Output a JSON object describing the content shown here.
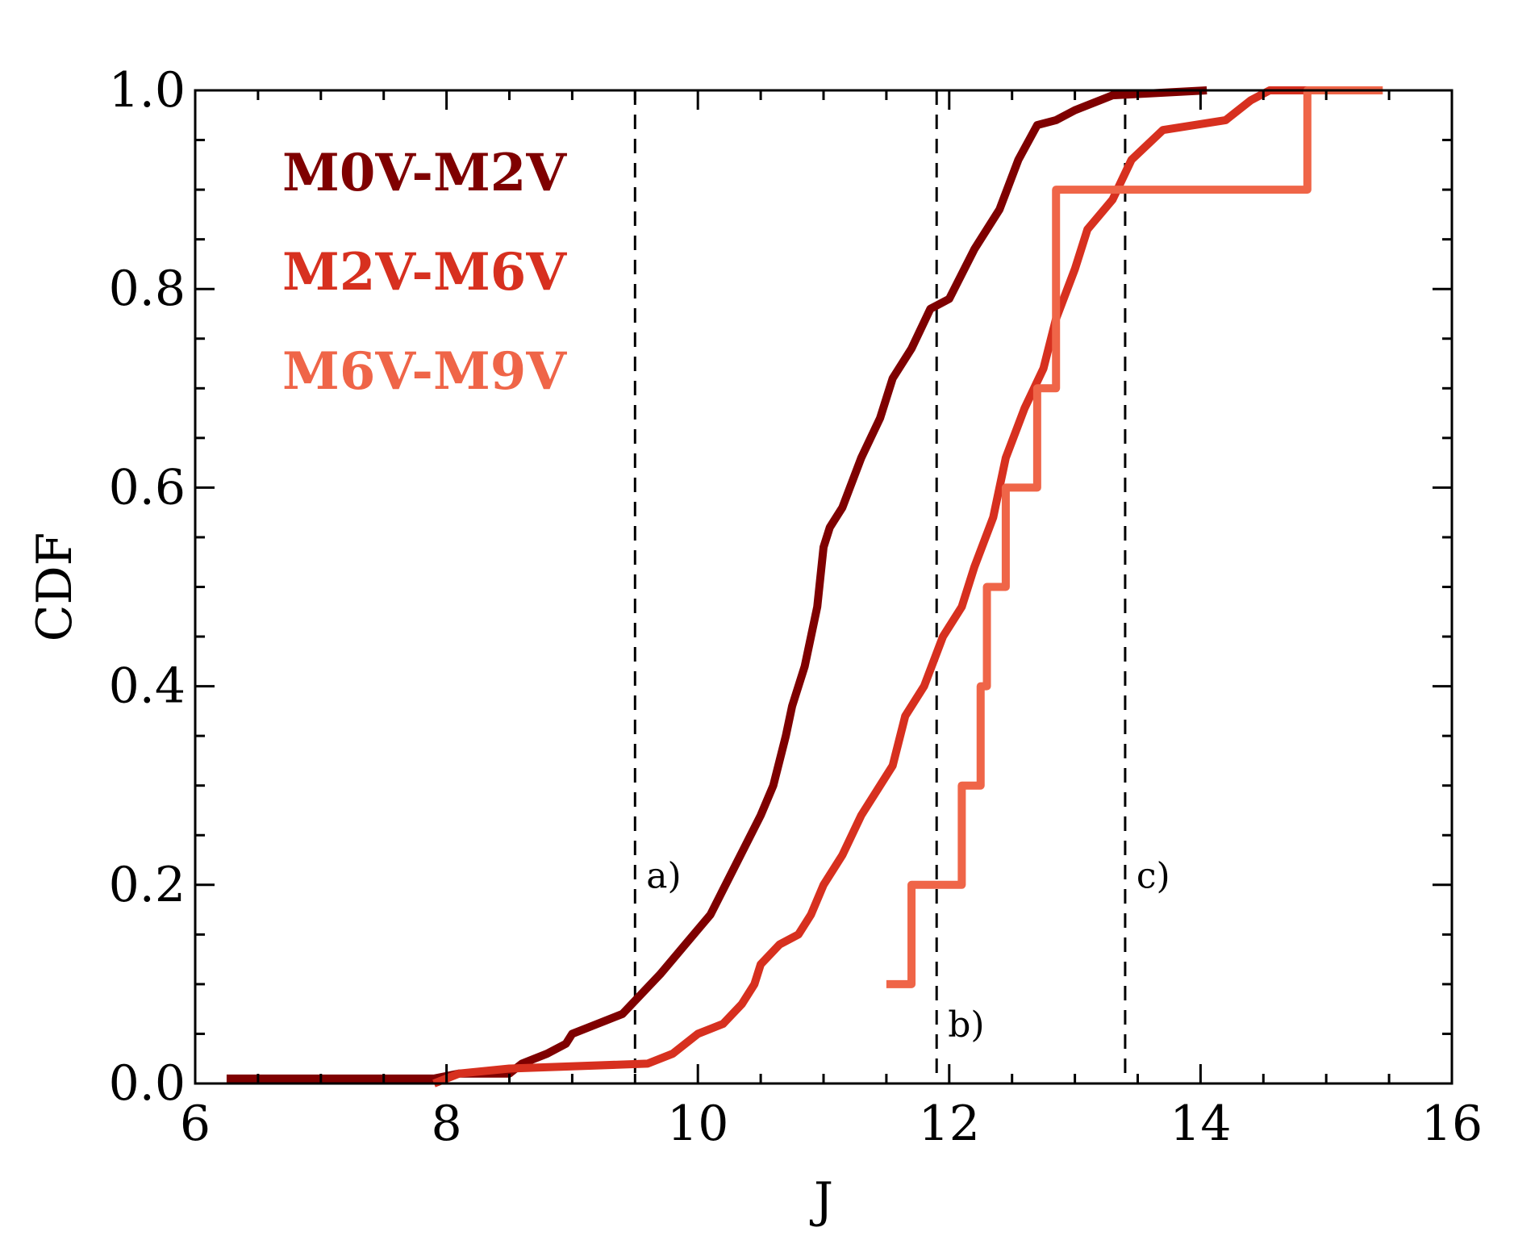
{
  "chart_data": {
    "type": "line",
    "title": "",
    "xlabel": "J",
    "ylabel": "CDF",
    "xlim": [
      6,
      16
    ],
    "ylim": [
      0,
      1
    ],
    "xticks": [
      6,
      8,
      10,
      12,
      14,
      16
    ],
    "xtick_labels": [
      "6",
      "8",
      "10",
      "12",
      "14",
      "16"
    ],
    "yticks": [
      0,
      0.2,
      0.4,
      0.6,
      0.8,
      1.0
    ],
    "ytick_labels": [
      "0.0",
      "0.2",
      "0.4",
      "0.6",
      "0.8",
      "1.0"
    ],
    "x_minor_step": 0.5,
    "y_minor_step": 0.05,
    "grid": false,
    "legend_placement": "top-left",
    "vertical_lines": [
      {
        "x": 9.5,
        "label": "a)",
        "label_y": 0.21
      },
      {
        "x": 11.9,
        "label": "b)",
        "label_y": 0.06
      },
      {
        "x": 13.4,
        "label": "c)",
        "label_y": 0.21
      }
    ],
    "series": [
      {
        "name": "M0V-M2V",
        "color": "#7f0000",
        "step": false,
        "x": [
          6.25,
          7.9,
          8.1,
          8.5,
          8.6,
          8.8,
          8.95,
          9.0,
          9.2,
          9.4,
          9.55,
          9.7,
          9.9,
          10.1,
          10.3,
          10.5,
          10.6,
          10.7,
          10.75,
          10.85,
          10.95,
          11.0,
          11.05,
          11.15,
          11.3,
          11.45,
          11.55,
          11.7,
          11.85,
          12.0,
          12.2,
          12.4,
          12.55,
          12.7,
          12.85,
          13.0,
          13.3,
          14.05
        ],
        "y": [
          0.005,
          0.005,
          0.01,
          0.01,
          0.02,
          0.03,
          0.04,
          0.05,
          0.06,
          0.07,
          0.09,
          0.11,
          0.14,
          0.17,
          0.22,
          0.27,
          0.3,
          0.35,
          0.38,
          0.42,
          0.48,
          0.54,
          0.56,
          0.58,
          0.63,
          0.67,
          0.71,
          0.74,
          0.78,
          0.79,
          0.84,
          0.88,
          0.93,
          0.965,
          0.97,
          0.98,
          0.995,
          1.0
        ]
      },
      {
        "name": "M2V-M6V",
        "color": "#d7301f",
        "step": false,
        "x": [
          7.9,
          8.1,
          8.5,
          9.6,
          9.8,
          10.0,
          10.2,
          10.35,
          10.45,
          10.5,
          10.65,
          10.8,
          10.9,
          11.0,
          11.15,
          11.3,
          11.45,
          11.55,
          11.65,
          11.8,
          11.95,
          12.1,
          12.2,
          12.35,
          12.45,
          12.6,
          12.75,
          12.85,
          13.0,
          13.1,
          13.3,
          13.45,
          13.7,
          14.2,
          14.4,
          14.55,
          15.25
        ],
        "y": [
          0.0,
          0.01,
          0.015,
          0.02,
          0.03,
          0.05,
          0.06,
          0.08,
          0.1,
          0.12,
          0.14,
          0.15,
          0.17,
          0.2,
          0.23,
          0.27,
          0.3,
          0.32,
          0.37,
          0.4,
          0.45,
          0.48,
          0.52,
          0.57,
          0.63,
          0.68,
          0.72,
          0.77,
          0.82,
          0.86,
          0.89,
          0.93,
          0.96,
          0.97,
          0.99,
          1.0,
          1.0
        ]
      },
      {
        "name": "M6V-M9V",
        "color": "#ef6548",
        "step": true,
        "x": [
          11.5,
          11.7,
          12.1,
          12.25,
          12.3,
          12.45,
          12.7,
          12.85,
          14.85,
          14.85
        ],
        "y": [
          0.1,
          0.2,
          0.3,
          0.4,
          0.5,
          0.6,
          0.7,
          0.9,
          1.0,
          1.0
        ]
      }
    ]
  }
}
